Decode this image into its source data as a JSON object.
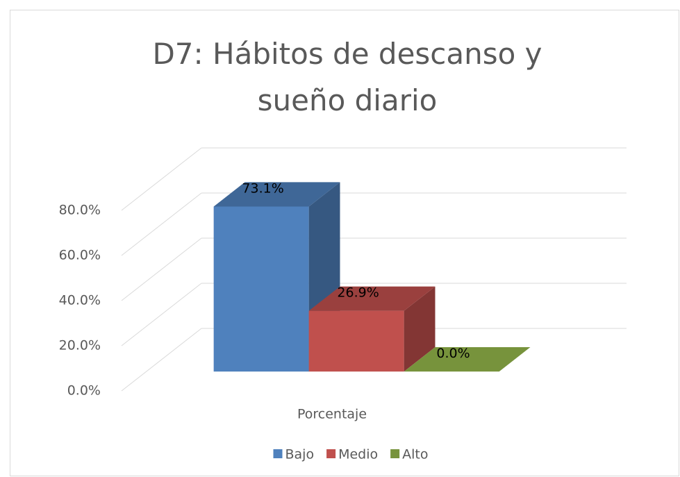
{
  "chart_data": {
    "type": "bar",
    "title": "D7: Hábitos de descanso y sueño diario",
    "categories": [
      "Porcentaje"
    ],
    "series": [
      {
        "name": "Bajo",
        "color": "#4f81bd",
        "values": [
          73.1
        ],
        "value_labels": [
          "73.1%"
        ]
      },
      {
        "name": "Medio",
        "color": "#c0504d",
        "values": [
          26.9
        ],
        "value_labels": [
          "26.9%"
        ]
      },
      {
        "name": "Alto",
        "color": "#77933c",
        "values": [
          0.0
        ],
        "value_labels": [
          "0.0%"
        ]
      }
    ],
    "ylim": [
      0,
      80
    ],
    "yticks": [
      {
        "value": 0,
        "label": "0.0%"
      },
      {
        "value": 20,
        "label": "20.0%"
      },
      {
        "value": 40,
        "label": "40.0%"
      },
      {
        "value": 60,
        "label": "60.0%"
      },
      {
        "value": 80,
        "label": "80.0%"
      }
    ],
    "grid": true,
    "legend": "bottom"
  }
}
